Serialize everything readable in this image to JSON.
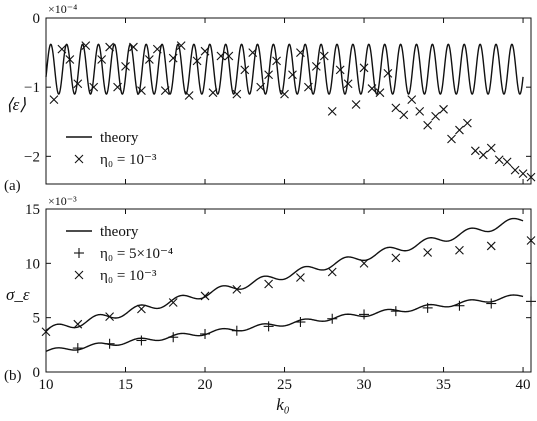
{
  "chart_data": [
    {
      "id": "a",
      "type": "line+scatter",
      "panel_label": "(a)",
      "ylabel": "⟨ε⟩",
      "y_multiplier": "×10⁻⁴",
      "xlim": [
        10,
        40.5
      ],
      "ylim": [
        -2.4,
        0
      ],
      "xticks": [
        10,
        15,
        20,
        25,
        30,
        35,
        40
      ],
      "yticks": [
        0,
        -1,
        -2
      ],
      "ytick_labels": [
        "0",
        "−1",
        "−2"
      ],
      "legend_placement": "lower-left",
      "theory": {
        "name": "theory",
        "description": "sinusoid between -1.1 and -0.38, period ~1",
        "mean": -0.74,
        "amplitude": 0.36,
        "period": 1.0,
        "phase_max_at_k0": 11.3
      },
      "series": [
        {
          "name": "η₀ = 10⁻³",
          "marker": "x",
          "x": [
            10.5,
            11,
            11.5,
            12,
            12.5,
            13,
            13.5,
            14,
            14.5,
            15,
            15.5,
            16,
            16.5,
            17,
            17.5,
            18,
            18.5,
            19,
            19.5,
            20,
            20.5,
            21,
            21.5,
            22,
            22.5,
            23,
            23.5,
            24,
            24.5,
            25,
            25.5,
            26,
            26.5,
            27,
            27.5,
            28,
            28.5,
            29,
            29.5,
            30,
            30.5,
            31,
            31.5,
            32,
            32.5,
            33,
            33.5,
            34,
            34.5,
            35,
            35.5,
            36,
            36.5,
            37,
            37.5,
            38,
            38.5,
            39,
            39.5,
            40,
            40.5
          ],
          "y": [
            -1.18,
            -0.45,
            -0.6,
            -0.95,
            -0.4,
            -1.0,
            -0.6,
            -0.42,
            -1.0,
            -0.7,
            -0.42,
            -1.05,
            -0.6,
            -0.45,
            -1.05,
            -0.58,
            -0.4,
            -1.12,
            -0.62,
            -0.48,
            -1.08,
            -0.55,
            -0.55,
            -1.1,
            -0.75,
            -0.5,
            -1.0,
            -0.82,
            -0.62,
            -1.1,
            -0.82,
            -0.5,
            -1.0,
            -0.7,
            -0.55,
            -1.35,
            -0.75,
            -0.95,
            -1.25,
            -0.72,
            -1.02,
            -1.08,
            -0.8,
            -1.3,
            -1.4,
            -1.18,
            -1.35,
            -1.55,
            -1.42,
            -1.32,
            -1.75,
            -1.62,
            -1.52,
            -1.92,
            -1.98,
            -1.88,
            -2.05,
            -2.08,
            -2.2,
            -2.25,
            -2.3
          ]
        }
      ],
      "legend": [
        "theory",
        "η₀ = 10⁻³"
      ]
    },
    {
      "id": "b",
      "type": "line+scatter",
      "panel_label": "(b)",
      "ylabel": "σ_ε",
      "y_multiplier": "×10⁻³",
      "xlabel": "k₀",
      "xlim": [
        10,
        40.5
      ],
      "ylim": [
        0,
        15
      ],
      "xticks": [
        10,
        15,
        20,
        25,
        30,
        35,
        40
      ],
      "yticks": [
        0,
        5,
        10,
        15
      ],
      "legend_placement": "top-left",
      "theory_curves": [
        {
          "name": "theory (η₀ = 10⁻³)",
          "start": [
            10,
            3.8
          ],
          "end": [
            40,
            14.0
          ],
          "wiggle": 0.35
        },
        {
          "name": "theory (η₀ = 5×10⁻⁴)",
          "start": [
            10,
            1.9
          ],
          "end": [
            40,
            7.0
          ],
          "wiggle": 0.2
        }
      ],
      "series": [
        {
          "name": "η₀ = 5×10⁻⁴",
          "marker": "+",
          "x": [
            12,
            14,
            16,
            18,
            20,
            22,
            24,
            26,
            28,
            30,
            32,
            34,
            36,
            38,
            40.5
          ],
          "y": [
            2.2,
            2.6,
            2.9,
            3.2,
            3.5,
            3.8,
            4.2,
            4.6,
            4.9,
            5.3,
            5.6,
            5.9,
            6.1,
            6.3,
            6.5
          ]
        },
        {
          "name": "η₀ = 10⁻³",
          "marker": "x",
          "x": [
            10,
            12,
            14,
            16,
            18,
            20,
            22,
            24,
            26,
            28,
            30,
            32,
            34,
            36,
            38,
            40.5
          ],
          "y": [
            3.7,
            4.4,
            5.1,
            5.8,
            6.4,
            7.0,
            7.6,
            8.1,
            8.7,
            9.2,
            10.0,
            10.5,
            11.0,
            11.2,
            11.6,
            12.1
          ]
        }
      ],
      "legend": [
        "theory",
        "η₀ = 5×10⁻⁴",
        "η₀ = 10⁻³"
      ]
    }
  ]
}
